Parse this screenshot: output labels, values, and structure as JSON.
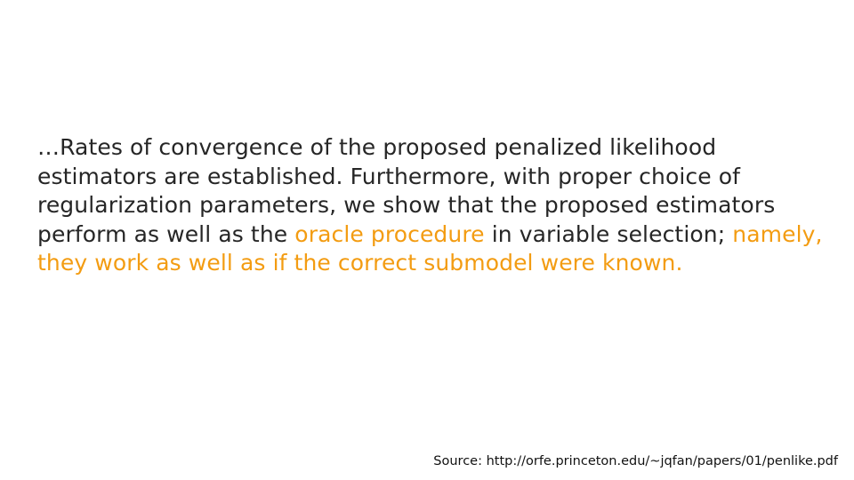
{
  "slide": {
    "quote_parts": [
      {
        "text": "…Rates of convergence of the proposed penalized likelihood estimators are established.  Furthermore, with proper choice of regularization parameters, we show that the proposed estimators perform as well as the ",
        "highlight": false
      },
      {
        "text": "oracle procedure",
        "highlight": true
      },
      {
        "text": " in variable selection; ",
        "highlight": false
      },
      {
        "text": "namely, they work as well as if the correct submodel were known.",
        "highlight": true
      }
    ],
    "source": "Source: http://orfe.princeton.edu/~jqfan/papers/01/penlike.pdf"
  },
  "colors": {
    "text": "#262626",
    "highlight": "#f39c12",
    "background": "#ffffff"
  }
}
